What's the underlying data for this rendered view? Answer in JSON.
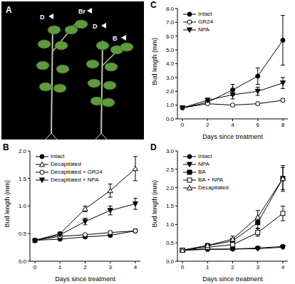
{
  "image": {
    "label": "A",
    "annotations": [
      "D",
      "Br",
      "D",
      "B"
    ]
  },
  "chart_data": [
    {
      "type": "line",
      "title": "B",
      "x_label": "Days since treatment",
      "y_label": "Bud length (mm)",
      "x": [
        0,
        1,
        2,
        3,
        4
      ],
      "xlim": [
        -0.2,
        4.2
      ],
      "xticks": [
        0,
        1,
        2,
        3,
        4
      ],
      "ylim": [
        0,
        2.0
      ],
      "yticks": [
        {
          "value": 0,
          "label": "0.0"
        },
        {
          "value": 0.5,
          "label": "0.5"
        },
        {
          "value": 1.0,
          "label": "1.0"
        },
        {
          "value": 1.5,
          "label": "1.5"
        },
        {
          "value": 2.0,
          "label": "2.0"
        }
      ],
      "grid": false,
      "legend": "top-left",
      "series": [
        {
          "name": "Intact",
          "color": "#000000",
          "marker": "circle",
          "values": [
            0.38,
            0.4,
            0.44,
            0.47,
            0.55
          ],
          "errors": [
            0.02,
            0.02,
            0.02,
            0.03,
            0.03
          ]
        },
        {
          "name": "Decapitated",
          "color": "#000000",
          "marker": "triangle-open",
          "values": [
            0.38,
            0.5,
            0.95,
            1.28,
            1.68
          ],
          "errors": [
            0.02,
            0.03,
            0.05,
            0.12,
            0.22
          ]
        },
        {
          "name": "Decapitated + GR24",
          "color": "#000000",
          "marker": "circle-open",
          "values": [
            0.38,
            0.45,
            0.48,
            0.52,
            0.55
          ],
          "errors": [
            0.02,
            0.02,
            0.02,
            0.03,
            0.03
          ]
        },
        {
          "name": "Decapitated + NPA",
          "color": "#000000",
          "marker": "triangle-down",
          "values": [
            0.37,
            0.48,
            0.72,
            0.92,
            1.04
          ],
          "errors": [
            0.02,
            0.03,
            0.06,
            0.08,
            0.1
          ]
        }
      ]
    },
    {
      "type": "line",
      "title": "C",
      "x_label": "Days since treatment",
      "y_label": "Bud length (mm)",
      "x": [
        0,
        2,
        4,
        6,
        8
      ],
      "xlim": [
        -0.4,
        8.4
      ],
      "xticks": [
        0,
        2,
        4,
        6,
        8
      ],
      "ylim": [
        0,
        8.0
      ],
      "yticks": [
        {
          "value": 0,
          "label": "0.0"
        },
        {
          "value": 1,
          "label": "1.0"
        },
        {
          "value": 2,
          "label": "2.0"
        },
        {
          "value": 3,
          "label": "3.0"
        },
        {
          "value": 4,
          "label": "4.0"
        },
        {
          "value": 5,
          "label": "5.0"
        },
        {
          "value": 6,
          "label": "6.0"
        },
        {
          "value": 7,
          "label": "7.0"
        },
        {
          "value": 8,
          "label": "8.0"
        }
      ],
      "grid": false,
      "legend": "top-left",
      "series": [
        {
          "name": "Intact",
          "color": "#000000",
          "marker": "circle",
          "values": [
            0.8,
            1.2,
            2.1,
            3.1,
            5.7
          ],
          "errors": [
            0.05,
            0.1,
            0.4,
            0.6,
            1.8
          ]
        },
        {
          "name": "GR24",
          "color": "#000000",
          "marker": "circle-open",
          "values": [
            0.8,
            1.1,
            1.0,
            1.1,
            1.35
          ],
          "errors": [
            0.05,
            0.05,
            0.05,
            0.1,
            0.1
          ]
        },
        {
          "name": "NPA",
          "color": "#000000",
          "marker": "triangle-down",
          "values": [
            0.8,
            1.35,
            1.75,
            2.0,
            2.6
          ],
          "errors": [
            0.05,
            0.1,
            0.3,
            0.3,
            0.4
          ]
        }
      ]
    },
    {
      "type": "line",
      "title": "D",
      "x_label": "Days since treatment",
      "y_label": "Bud length (mm)",
      "x": [
        0,
        1,
        2,
        3,
        4
      ],
      "xlim": [
        -0.2,
        4.2
      ],
      "xticks": [
        0,
        1,
        2,
        3,
        4
      ],
      "ylim": [
        0,
        3.0
      ],
      "yticks": [
        {
          "value": 0,
          "label": "0.0"
        },
        {
          "value": 0.5,
          "label": "0.5"
        },
        {
          "value": 1.0,
          "label": "1.0"
        },
        {
          "value": 1.5,
          "label": "1.5"
        },
        {
          "value": 2.0,
          "label": "2.0"
        },
        {
          "value": 2.5,
          "label": "2.5"
        },
        {
          "value": 3.0,
          "label": "3.0"
        }
      ],
      "grid": false,
      "legend": "top-left",
      "series": [
        {
          "name": "Intact",
          "color": "#000000",
          "marker": "circle",
          "values": [
            0.3,
            0.32,
            0.33,
            0.36,
            0.4
          ],
          "errors": [
            0.02,
            0.02,
            0.02,
            0.02,
            0.03
          ]
        },
        {
          "name": "NPA",
          "color": "#000000",
          "marker": "triangle-down",
          "values": [
            0.3,
            0.33,
            0.33,
            0.34,
            0.38
          ],
          "errors": [
            0.02,
            0.02,
            0.02,
            0.02,
            0.03
          ]
        },
        {
          "name": "BA",
          "color": "#000000",
          "marker": "square",
          "values": [
            0.3,
            0.42,
            0.55,
            1.05,
            2.25
          ],
          "errors": [
            0.03,
            0.05,
            0.07,
            0.15,
            0.3
          ]
        },
        {
          "name": "BA + NPA",
          "color": "#000000",
          "marker": "square-open",
          "values": [
            0.3,
            0.38,
            0.45,
            0.78,
            1.3
          ],
          "errors": [
            0.02,
            0.04,
            0.05,
            0.1,
            0.2
          ]
        },
        {
          "name": "Decapitated",
          "color": "#000000",
          "marker": "triangle-open",
          "values": [
            0.3,
            0.43,
            0.6,
            1.2,
            2.25
          ],
          "errors": [
            0.03,
            0.05,
            0.08,
            0.18,
            0.35
          ]
        }
      ]
    }
  ]
}
